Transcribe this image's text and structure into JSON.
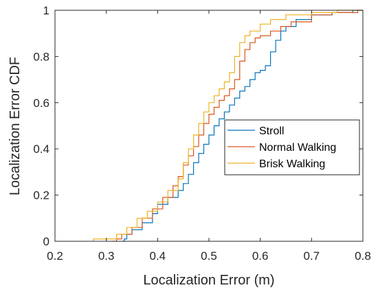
{
  "chart_data": {
    "type": "line",
    "title": "",
    "xlabel": "Localization Error (m)",
    "ylabel": "Localization Error CDF",
    "xlim": [
      0.2,
      0.8
    ],
    "ylim": [
      0,
      1
    ],
    "xticks": [
      "0.2",
      "0.3",
      "0.4",
      "0.5",
      "0.6",
      "0.7",
      "0.8"
    ],
    "yticks": [
      "0",
      "0.2",
      "0.4",
      "0.6",
      "0.8",
      "1"
    ],
    "grid": false,
    "legend_position": "right",
    "series": [
      {
        "name": "Stroll",
        "color": "#0072BD",
        "points": [
          [
            0.33,
            0
          ],
          [
            0.335,
            0.01
          ],
          [
            0.34,
            0.03
          ],
          [
            0.35,
            0.05
          ],
          [
            0.37,
            0.08
          ],
          [
            0.39,
            0.12
          ],
          [
            0.4,
            0.16
          ],
          [
            0.42,
            0.19
          ],
          [
            0.44,
            0.22
          ],
          [
            0.45,
            0.25
          ],
          [
            0.46,
            0.29
          ],
          [
            0.47,
            0.34
          ],
          [
            0.48,
            0.38
          ],
          [
            0.49,
            0.42
          ],
          [
            0.5,
            0.46
          ],
          [
            0.51,
            0.5
          ],
          [
            0.52,
            0.53
          ],
          [
            0.53,
            0.56
          ],
          [
            0.54,
            0.59
          ],
          [
            0.55,
            0.62
          ],
          [
            0.56,
            0.65
          ],
          [
            0.57,
            0.67
          ],
          [
            0.58,
            0.7
          ],
          [
            0.59,
            0.73
          ],
          [
            0.6,
            0.74
          ],
          [
            0.61,
            0.76
          ],
          [
            0.62,
            0.82
          ],
          [
            0.63,
            0.87
          ],
          [
            0.64,
            0.91
          ],
          [
            0.65,
            0.93
          ],
          [
            0.67,
            0.96
          ],
          [
            0.7,
            0.98
          ],
          [
            0.74,
            0.99
          ],
          [
            0.78,
            1.0
          ],
          [
            0.8,
            1.0
          ]
        ]
      },
      {
        "name": "Normal Walking",
        "color": "#D95319",
        "points": [
          [
            0.31,
            0
          ],
          [
            0.32,
            0.01
          ],
          [
            0.33,
            0.03
          ],
          [
            0.35,
            0.06
          ],
          [
            0.37,
            0.1
          ],
          [
            0.39,
            0.14
          ],
          [
            0.41,
            0.19
          ],
          [
            0.43,
            0.24
          ],
          [
            0.44,
            0.28
          ],
          [
            0.45,
            0.33
          ],
          [
            0.46,
            0.37
          ],
          [
            0.47,
            0.41
          ],
          [
            0.48,
            0.46
          ],
          [
            0.49,
            0.51
          ],
          [
            0.5,
            0.55
          ],
          [
            0.51,
            0.58
          ],
          [
            0.52,
            0.61
          ],
          [
            0.53,
            0.63
          ],
          [
            0.54,
            0.66
          ],
          [
            0.55,
            0.7
          ],
          [
            0.56,
            0.78
          ],
          [
            0.57,
            0.83
          ],
          [
            0.58,
            0.86
          ],
          [
            0.59,
            0.88
          ],
          [
            0.6,
            0.89
          ],
          [
            0.62,
            0.91
          ],
          [
            0.64,
            0.93
          ],
          [
            0.66,
            0.95
          ],
          [
            0.7,
            0.98
          ],
          [
            0.74,
            0.99
          ],
          [
            0.79,
            1.0
          ],
          [
            0.8,
            1.0
          ]
        ]
      },
      {
        "name": "Brisk Walking",
        "color": "#EDB120",
        "points": [
          [
            0.275,
            0
          ],
          [
            0.275,
            0.01
          ],
          [
            0.3,
            0.01
          ],
          [
            0.32,
            0.03
          ],
          [
            0.34,
            0.06
          ],
          [
            0.36,
            0.1
          ],
          [
            0.38,
            0.13
          ],
          [
            0.4,
            0.17
          ],
          [
            0.42,
            0.22
          ],
          [
            0.44,
            0.27
          ],
          [
            0.45,
            0.34
          ],
          [
            0.46,
            0.4
          ],
          [
            0.47,
            0.46
          ],
          [
            0.48,
            0.51
          ],
          [
            0.49,
            0.56
          ],
          [
            0.5,
            0.6
          ],
          [
            0.51,
            0.63
          ],
          [
            0.52,
            0.66
          ],
          [
            0.53,
            0.69
          ],
          [
            0.54,
            0.73
          ],
          [
            0.55,
            0.8
          ],
          [
            0.56,
            0.86
          ],
          [
            0.57,
            0.89
          ],
          [
            0.58,
            0.91
          ],
          [
            0.6,
            0.94
          ],
          [
            0.62,
            0.96
          ],
          [
            0.65,
            0.98
          ],
          [
            0.7,
            0.99
          ],
          [
            0.75,
            1.0
          ],
          [
            0.8,
            1.0
          ]
        ]
      }
    ]
  }
}
